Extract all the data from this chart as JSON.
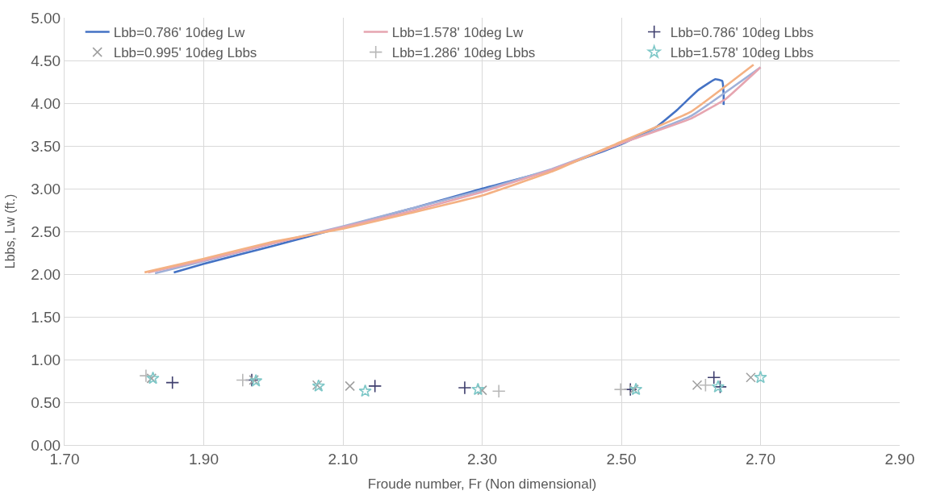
{
  "chart_data": {
    "type": "line",
    "xlabel": "Froude number, Fr (Non dimensional)",
    "ylabel": "Lbbs, Lw (ft.)",
    "xlim": [
      1.7,
      2.9
    ],
    "xticks": [
      {
        "value": 1.7,
        "label": "1.70"
      },
      {
        "value": 1.9,
        "label": "1.90"
      },
      {
        "value": 2.1,
        "label": "2.10"
      },
      {
        "value": 2.3,
        "label": "2.30"
      },
      {
        "value": 2.5,
        "label": "2.50"
      },
      {
        "value": 2.7,
        "label": "2.70"
      },
      {
        "value": 2.9,
        "label": "2.90"
      }
    ],
    "ylim": [
      0,
      5
    ],
    "yticks": [
      {
        "value": 0,
        "label": "0.00"
      },
      {
        "value": 0.5,
        "label": "0.50"
      },
      {
        "value": 1,
        "label": "1.00"
      },
      {
        "value": 1.5,
        "label": "1.50"
      },
      {
        "value": 2,
        "label": "2.00"
      },
      {
        "value": 2.5,
        "label": "2.50"
      },
      {
        "value": 3,
        "label": "3.00"
      },
      {
        "value": 3.5,
        "label": "3.50"
      },
      {
        "value": 4,
        "label": "4.00"
      },
      {
        "value": 4.5,
        "label": "4.50"
      },
      {
        "value": 5,
        "label": "5.00"
      }
    ],
    "grid": true,
    "legend": "top",
    "series": [
      {
        "name": "Lbb=0.786' 10deg Lw",
        "marker": "none",
        "color": "#4472c4",
        "x": [
          1.857,
          1.9,
          2.0,
          2.1,
          2.2,
          2.3,
          2.4,
          2.5,
          2.55,
          2.58,
          2.61,
          2.635,
          2.645,
          2.647,
          2.647
        ],
        "values": [
          2.02,
          2.12,
          2.33,
          2.55,
          2.77,
          3.0,
          3.22,
          3.52,
          3.72,
          3.92,
          4.15,
          4.28,
          4.26,
          4.1,
          3.98
        ]
      },
      {
        "marker": "none",
        "color": "#9fb0d8",
        "x": [
          1.83,
          1.9,
          2.0,
          2.1,
          2.2,
          2.3,
          2.4,
          2.5,
          2.6,
          2.7
        ],
        "values": [
          2.01,
          2.15,
          2.36,
          2.56,
          2.77,
          2.98,
          3.23,
          3.53,
          3.85,
          4.42
        ]
      },
      {
        "name": "Lbb=1.578' 10deg Lw",
        "marker": "none",
        "color": "#e6a5b0",
        "x": [
          1.82,
          1.9,
          2.0,
          2.1,
          2.2,
          2.3,
          2.4,
          2.5,
          2.6,
          2.65,
          2.7
        ],
        "values": [
          2.02,
          2.16,
          2.36,
          2.55,
          2.74,
          2.96,
          3.22,
          3.53,
          3.82,
          4.05,
          4.42
        ]
      },
      {
        "marker": "none",
        "color": "#f4b183",
        "x": [
          1.815,
          1.9,
          2.0,
          2.1,
          2.2,
          2.3,
          2.4,
          2.5,
          2.6,
          2.69
        ],
        "values": [
          2.02,
          2.18,
          2.38,
          2.53,
          2.72,
          2.92,
          3.2,
          3.55,
          3.9,
          4.45
        ]
      },
      {
        "name": "Lbb=0.786' 10deg Lbbs",
        "type": "scatter",
        "marker": "cross",
        "color": "#3f3f6e",
        "x": [
          1.855,
          1.969,
          2.146,
          2.275,
          2.513,
          2.633,
          2.642
        ],
        "values": [
          0.73,
          0.76,
          0.69,
          0.67,
          0.65,
          0.79,
          0.68
        ]
      },
      {
        "name": "Lbb=0.995' 10deg Lbbs",
        "type": "scatter",
        "marker": "x",
        "color": "#a0a0a0",
        "x": [
          1.825,
          1.972,
          2.063,
          2.11,
          2.3,
          2.518,
          2.609,
          2.686
        ],
        "values": [
          0.78,
          0.76,
          0.7,
          0.69,
          0.64,
          0.65,
          0.7,
          0.79
        ]
      },
      {
        "name": "Lbb=1.286' 10deg Lbbs",
        "type": "scatter",
        "marker": "cross",
        "color": "#b8b8b8",
        "x": [
          1.817,
          1.956,
          2.324,
          2.499,
          2.621
        ],
        "values": [
          0.81,
          0.76,
          0.63,
          0.65,
          0.7
        ]
      },
      {
        "name": "Lbb=1.578' 10deg Lbbs",
        "type": "scatter",
        "marker": "star",
        "color": "#7fc8c8",
        "x": [
          1.827,
          1.975,
          2.065,
          2.132,
          2.294,
          2.521,
          2.639,
          2.7
        ],
        "values": [
          0.78,
          0.75,
          0.69,
          0.63,
          0.65,
          0.65,
          0.68,
          0.79
        ]
      }
    ]
  }
}
